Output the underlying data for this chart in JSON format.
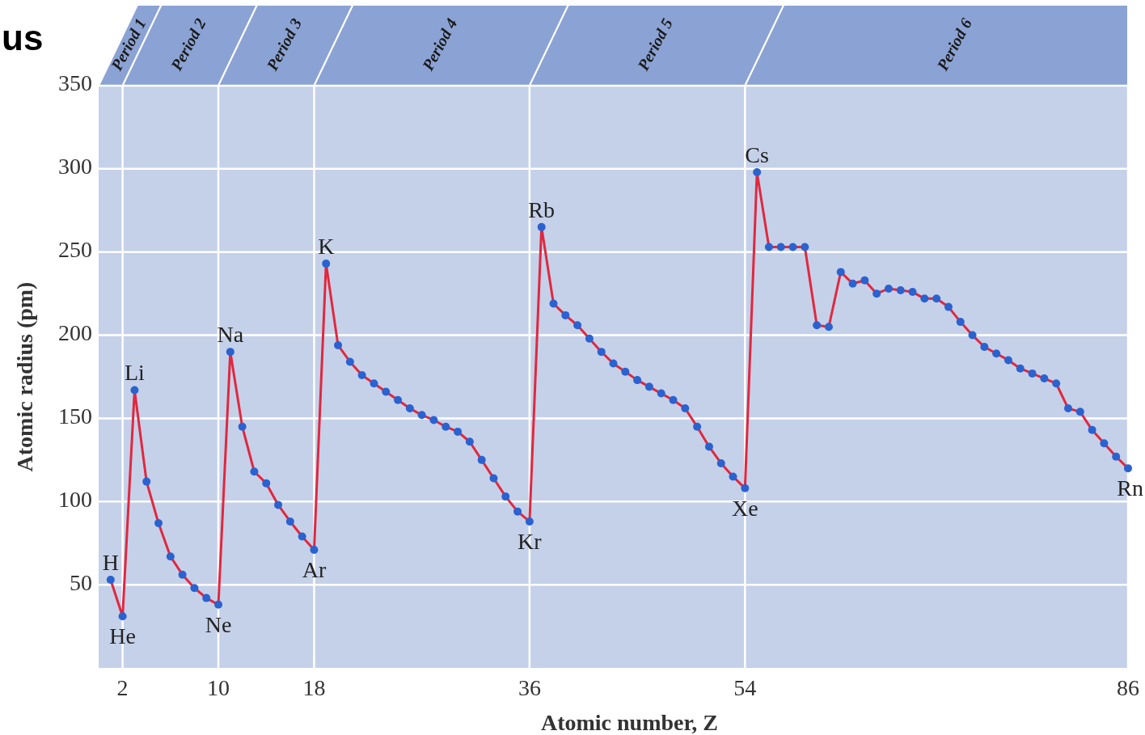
{
  "chart_data": {
    "type": "line",
    "title": "us",
    "xlabel": "Atomic number, Z",
    "ylabel": "Atomic radius (pm)",
    "x": [
      1,
      2,
      3,
      4,
      5,
      6,
      7,
      8,
      9,
      10,
      11,
      12,
      13,
      14,
      15,
      16,
      17,
      18,
      19,
      20,
      21,
      22,
      23,
      24,
      25,
      26,
      27,
      28,
      29,
      30,
      31,
      32,
      33,
      34,
      35,
      36,
      37,
      38,
      39,
      40,
      41,
      42,
      43,
      44,
      45,
      46,
      47,
      48,
      49,
      50,
      51,
      52,
      53,
      54,
      55,
      56,
      57,
      58,
      59,
      60,
      61,
      62,
      63,
      64,
      65,
      66,
      67,
      68,
      69,
      70,
      71,
      72,
      73,
      74,
      75,
      76,
      77,
      78,
      79,
      80,
      81,
      82,
      83,
      84,
      85,
      86
    ],
    "series": [
      {
        "color": "#e0283f",
        "values": [
          53,
          31,
          167,
          112,
          87,
          67,
          56,
          48,
          42,
          38,
          190,
          145,
          118,
          111,
          98,
          88,
          79,
          71,
          243,
          194,
          184,
          176,
          171,
          166,
          161,
          156,
          152,
          149,
          145,
          142,
          136,
          125,
          114,
          103,
          94,
          88,
          265,
          219,
          212,
          206,
          198,
          190,
          183,
          178,
          173,
          169,
          165,
          161,
          156,
          145,
          133,
          123,
          115,
          108,
          298,
          253,
          253,
          253,
          253,
          206,
          205,
          238,
          231,
          233,
          225,
          228,
          227,
          226,
          222,
          222,
          217,
          208,
          200,
          193,
          189,
          185,
          180,
          177,
          174,
          171,
          156,
          154,
          143,
          135,
          127,
          120
        ]
      }
    ],
    "marker": "circle",
    "line_style": "solid",
    "xlim": [
      0,
      86
    ],
    "xticks": [
      2,
      10,
      18,
      36,
      54,
      86
    ],
    "ylim": [
      0,
      350
    ],
    "yticks": [
      50,
      100,
      150,
      200,
      250,
      300,
      350
    ],
    "grid": true,
    "bands": [
      {
        "axis": "x",
        "from": 0,
        "to": 2,
        "label": "Period 1",
        "color": "#8ba3d4"
      },
      {
        "axis": "x",
        "from": 2,
        "to": 10,
        "label": "Period 2",
        "color": "#8ba3d4"
      },
      {
        "axis": "x",
        "from": 10,
        "to": 18,
        "label": "Period 3",
        "color": "#8ba3d4"
      },
      {
        "axis": "x",
        "from": 18,
        "to": 36,
        "label": "Period 4",
        "color": "#8ba3d4"
      },
      {
        "axis": "x",
        "from": 36,
        "to": 54,
        "label": "Period 5",
        "color": "#8ba3d4"
      },
      {
        "axis": "x",
        "from": 54,
        "to": 86,
        "label": "Period 6",
        "color": "#8ba3d4"
      }
    ],
    "annotations": [
      {
        "text": "H",
        "x": 1,
        "y": 53
      },
      {
        "text": "He",
        "x": 2,
        "y": 31
      },
      {
        "text": "Li",
        "x": 3,
        "y": 167
      },
      {
        "text": "Ne",
        "x": 10,
        "y": 38
      },
      {
        "text": "Na",
        "x": 11,
        "y": 190
      },
      {
        "text": "Ar",
        "x": 18,
        "y": 71
      },
      {
        "text": "K",
        "x": 19,
        "y": 243
      },
      {
        "text": "Kr",
        "x": 36,
        "y": 88
      },
      {
        "text": "Rb",
        "x": 37,
        "y": 265
      },
      {
        "text": "Xe",
        "x": 54,
        "y": 108
      },
      {
        "text": "Cs",
        "x": 55,
        "y": 298
      },
      {
        "text": "Rn",
        "x": 86,
        "y": 120
      }
    ]
  }
}
